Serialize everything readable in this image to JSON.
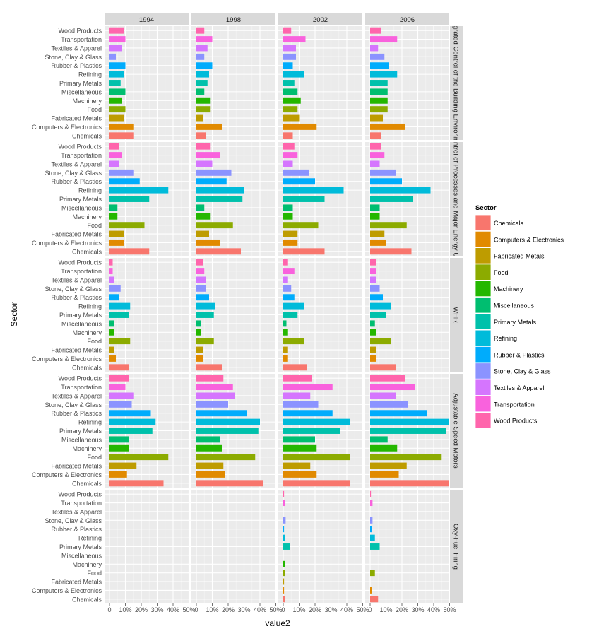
{
  "chart_data": {
    "type": "bar",
    "orientation": "horizontal",
    "title": "",
    "xlabel": "value2",
    "ylabel": "Sector",
    "xlim": [
      0,
      0.5
    ],
    "xticks": [
      "0",
      "10%",
      "20%",
      "30%",
      "40%",
      "50%"
    ],
    "grid": true,
    "legend_position": "right",
    "legend_title": "Sector",
    "columns": [
      "1994",
      "1998",
      "2002",
      "2006"
    ],
    "rows": [
      "Integrated Control of the Building Environment",
      "Control of Processes and Major Energy Use",
      "WHR",
      "Adjustable Speed Motors",
      "Oxy-Fuel Firing"
    ],
    "categories": [
      "Chemicals",
      "Computers & Electronics",
      "Fabricated Metals",
      "Food",
      "Machinery",
      "Miscellaneous",
      "Primary Metals",
      "Refining",
      "Rubber & Plastics",
      "Stone, Clay & Glass",
      "Textiles & Apparel",
      "Transportation",
      "Wood Products"
    ],
    "colors": [
      "#F8766D",
      "#E18A00",
      "#BE9C00",
      "#8CAB00",
      "#24B700",
      "#00BE70",
      "#00C1AB",
      "#00BBDA",
      "#00ACFC",
      "#8B93FF",
      "#D575FE",
      "#F962DD",
      "#FF65AC"
    ],
    "panels": [
      [
        [
          0.15,
          0.15,
          0.09,
          0.1,
          0.08,
          0.1,
          0.07,
          0.09,
          0.1,
          0.04,
          0.08,
          0.1,
          0.09
        ],
        [
          0.06,
          0.16,
          0.04,
          0.09,
          0.09,
          0.05,
          0.07,
          0.08,
          0.1,
          0.05,
          0.07,
          0.1,
          0.05
        ],
        [
          0.06,
          0.21,
          0.1,
          0.09,
          0.11,
          0.09,
          0.07,
          0.13,
          0.06,
          0.08,
          0.08,
          0.14,
          0.05
        ],
        [
          0.07,
          0.22,
          0.08,
          0.11,
          0.11,
          0.11,
          0.11,
          0.17,
          0.12,
          0.09,
          0.05,
          0.17,
          0.07
        ]
      ],
      [
        [
          0.25,
          0.09,
          0.09,
          0.22,
          0.05,
          0.05,
          0.25,
          0.37,
          0.19,
          0.15,
          0.06,
          0.08,
          0.06
        ],
        [
          0.28,
          0.15,
          0.08,
          0.23,
          0.09,
          0.05,
          0.29,
          0.3,
          0.19,
          0.22,
          0.1,
          0.15,
          0.09
        ],
        [
          0.26,
          0.09,
          0.09,
          0.22,
          0.06,
          0.06,
          0.26,
          0.38,
          0.2,
          0.16,
          0.06,
          0.09,
          0.07
        ],
        [
          0.26,
          0.1,
          0.09,
          0.23,
          0.06,
          0.06,
          0.27,
          0.38,
          0.2,
          0.16,
          0.06,
          0.09,
          0.07
        ]
      ],
      [
        [
          0.12,
          0.04,
          0.03,
          0.13,
          0.03,
          0.03,
          0.12,
          0.13,
          0.06,
          0.07,
          0.03,
          0.02,
          0.02
        ],
        [
          0.16,
          0.04,
          0.04,
          0.11,
          0.03,
          0.03,
          0.11,
          0.12,
          0.08,
          0.06,
          0.06,
          0.05,
          0.04
        ],
        [
          0.15,
          0.03,
          0.03,
          0.13,
          0.03,
          0.02,
          0.09,
          0.13,
          0.07,
          0.05,
          0.03,
          0.07,
          0.03
        ],
        [
          0.16,
          0.04,
          0.04,
          0.13,
          0.04,
          0.03,
          0.1,
          0.13,
          0.08,
          0.06,
          0.04,
          0.04,
          0.04
        ]
      ],
      [
        [
          0.34,
          0.11,
          0.17,
          0.37,
          0.12,
          0.12,
          0.27,
          0.29,
          0.26,
          0.14,
          0.15,
          0.1,
          0.12
        ],
        [
          0.42,
          0.18,
          0.17,
          0.37,
          0.16,
          0.15,
          0.39,
          0.4,
          0.32,
          0.2,
          0.24,
          0.23,
          0.17
        ],
        [
          0.42,
          0.21,
          0.17,
          0.42,
          0.21,
          0.2,
          0.36,
          0.42,
          0.31,
          0.22,
          0.17,
          0.31,
          0.18
        ],
        [
          0.5,
          0.18,
          0.23,
          0.45,
          0.17,
          0.11,
          0.48,
          0.5,
          0.36,
          0.24,
          0.16,
          0.28,
          0.22
        ]
      ],
      [
        [
          0,
          0,
          0,
          0,
          0,
          0,
          0,
          0,
          0,
          0,
          0,
          0,
          0
        ],
        [
          0,
          0,
          0,
          0,
          0,
          0,
          0,
          0,
          0,
          0,
          0,
          0,
          0
        ],
        [
          0.01,
          0.005,
          0.005,
          0.01,
          0.01,
          0,
          0.04,
          0.01,
          0.005,
          0.015,
          0,
          0.01,
          0.005
        ],
        [
          0.05,
          0.01,
          0,
          0.03,
          0,
          0,
          0.06,
          0.03,
          0.01,
          0.015,
          0,
          0.015,
          0.005
        ]
      ]
    ]
  }
}
